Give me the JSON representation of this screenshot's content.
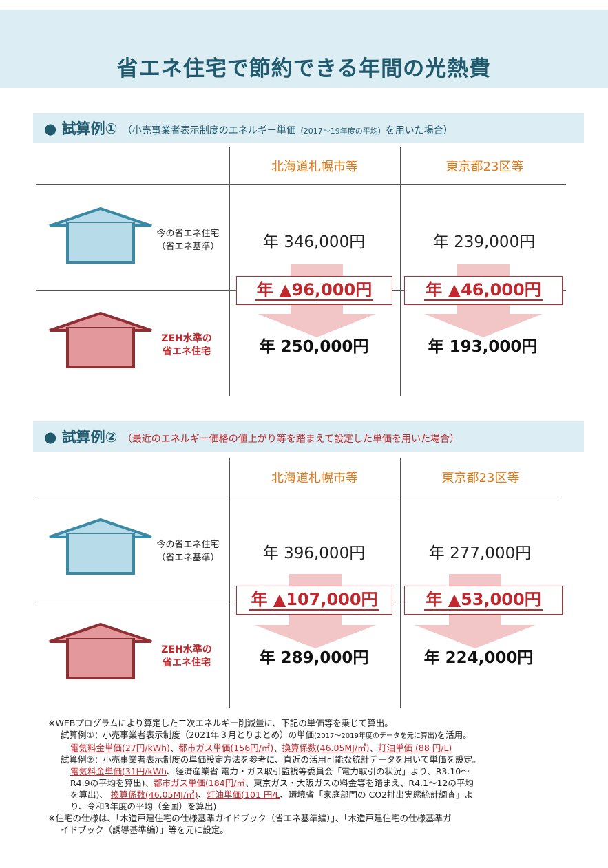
{
  "title": "省エネ住宅で節約できる年間の光熱費",
  "regions": [
    "北海道札幌市等",
    "東京都23区等"
  ],
  "row_labels": {
    "current_line1": "今の省エネ住宅",
    "current_line2": "（省エネ基準）",
    "zeh_line1": "ZEH水準の",
    "zeh_line2": "省エネ住宅"
  },
  "cases": [
    {
      "title": "● 試算例①",
      "note_main": "（小売事業者表示制度のエネルギー単価",
      "note_small": "（2017～19年度の平均）",
      "note_end": "を用いた場合）",
      "current": [
        "年 346,000円",
        "年 239,000円"
      ],
      "savings": [
        "年 ▲96,000円",
        "年 ▲46,000円"
      ],
      "zeh": [
        "年 250,000円",
        "年 193,000円"
      ]
    },
    {
      "title": "● 試算例②",
      "note_main": "（最近のエネルギー価格の値上がり等を踏まえて設定した単価を用いた場合）",
      "current": [
        "年 396,000円",
        "年 277,000円"
      ],
      "savings": [
        "年 ▲107,000円",
        "年 ▲53,000円"
      ],
      "zeh": [
        "年 289,000円",
        "年 224,000円"
      ]
    }
  ],
  "footnotes": {
    "l1": "※WEBプログラムにより算定した二次エネルギー削減量に、下記の単価等を乗じて算出。",
    "l2a": "試算例①：小売事業者表示制度（2021年３月とりまとめ）の単価",
    "l2b": "(2017～2019年度のデータを元に算出)",
    "l2c": "を活用。",
    "l3_u1": "電気料金単価(27円/kWh)",
    "l3_u2": "都市ガス単価(156円/㎥)",
    "l3_u3": "換算係数(46.05MJ/㎥)",
    "l3_u4": "灯油単価 (88 円/L)",
    "sep": "、",
    "l4": "試算例②：小売事業者表示制度の単価設定方法を参考に、直近の活用可能な統計データを用いて単価を設定。",
    "l5_u1": "電気料金単価(31円/kWh",
    "l5_t": "、経済産業省 電力・ガス取引監視等委員会「電力取引の状況」より、R3.10～",
    "l6a": "R4.9の平均を算出)、",
    "l6_u": "都市ガス単価(184円/㎥",
    "l6b": "、東京ガス・大阪ガスの料金等を踏まえ、R4.1～12の平均",
    "l7a": "を算出)、 ",
    "l7_u1": "換算係数(46.05MJ/㎥)",
    "l7_u2": "灯油単価(101 円/L",
    "l7b": "、環境省「家庭部門の CO2排出実態統計調査」よ",
    "l8": "り、令和3年度の平均（全国）を算出)",
    "l9": "※住宅の仕様は、「木造戸建住宅の仕様基準ガイドブック（省エネ基準編）」、「木造戸建住宅の仕様基準ガ",
    "l10": "イドブック（誘導基準編）」等を元に設定。"
  },
  "colors": {
    "title": "#1f5a6e",
    "band": "#dcedf3",
    "region": "#e07b1a",
    "accent_red": "#c0282d",
    "house_blue_fill": "#b7dbe8",
    "house_blue_stroke": "#3a8aa6",
    "house_red_fill": "#e3989c",
    "house_red_stroke": "#8e2f33"
  }
}
